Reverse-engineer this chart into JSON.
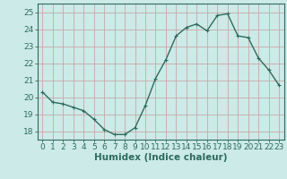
{
  "x": [
    0,
    1,
    2,
    3,
    4,
    5,
    6,
    7,
    8,
    9,
    10,
    11,
    12,
    13,
    14,
    15,
    16,
    17,
    18,
    19,
    20,
    21,
    22,
    23
  ],
  "y": [
    20.3,
    19.7,
    19.6,
    19.4,
    19.2,
    18.7,
    18.1,
    17.8,
    17.8,
    18.2,
    19.5,
    21.1,
    22.2,
    23.6,
    24.1,
    24.3,
    23.9,
    24.8,
    24.9,
    23.6,
    23.5,
    22.3,
    21.6,
    20.7
  ],
  "line_color": "#2e6b5e",
  "marker_color": "#2e6b5e",
  "bg_color": "#cceae7",
  "grid_color": "#c8a8a8",
  "xlabel": "Humidex (Indice chaleur)",
  "xlim": [
    -0.5,
    23.5
  ],
  "ylim": [
    17.5,
    25.5
  ],
  "yticks": [
    18,
    19,
    20,
    21,
    22,
    23,
    24,
    25
  ],
  "xticks": [
    0,
    1,
    2,
    3,
    4,
    5,
    6,
    7,
    8,
    9,
    10,
    11,
    12,
    13,
    14,
    15,
    16,
    17,
    18,
    19,
    20,
    21,
    22,
    23
  ],
  "tick_label_fontsize": 6.5,
  "xlabel_fontsize": 7.5,
  "line_width": 1.0,
  "marker_size": 2.5
}
